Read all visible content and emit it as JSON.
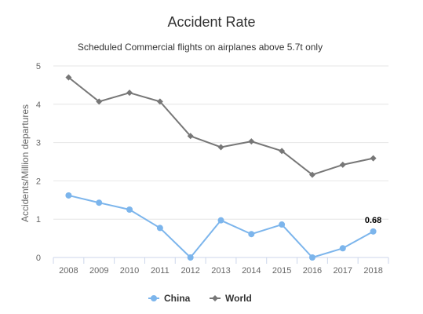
{
  "chart_data": {
    "type": "line",
    "title": "Accident Rate",
    "subtitle": "Scheduled Commercial flights on airplanes above 5.7t only",
    "ylabel": "Accidents/Million departures",
    "xlabel": "",
    "categories": [
      "2008",
      "2009",
      "2010",
      "2011",
      "2012",
      "2013",
      "2014",
      "2015",
      "2016",
      "2017",
      "2018"
    ],
    "ylim": [
      0,
      5
    ],
    "yticks": [
      0,
      1,
      2,
      3,
      4,
      5
    ],
    "grid": true,
    "legend": "bottom-center",
    "series": [
      {
        "name": "China",
        "color": "#7cb5ec",
        "marker": "circle",
        "values": [
          1.62,
          1.43,
          1.25,
          0.77,
          0.0,
          0.97,
          0.61,
          0.86,
          0.0,
          0.24,
          0.68
        ]
      },
      {
        "name": "World",
        "color": "#777777",
        "marker": "diamond",
        "values": [
          4.7,
          4.07,
          4.3,
          4.07,
          3.17,
          2.88,
          3.03,
          2.78,
          2.16,
          2.42,
          2.59
        ]
      }
    ],
    "annotations": [
      {
        "series": "China",
        "index": 10,
        "text": "0.68"
      }
    ]
  }
}
